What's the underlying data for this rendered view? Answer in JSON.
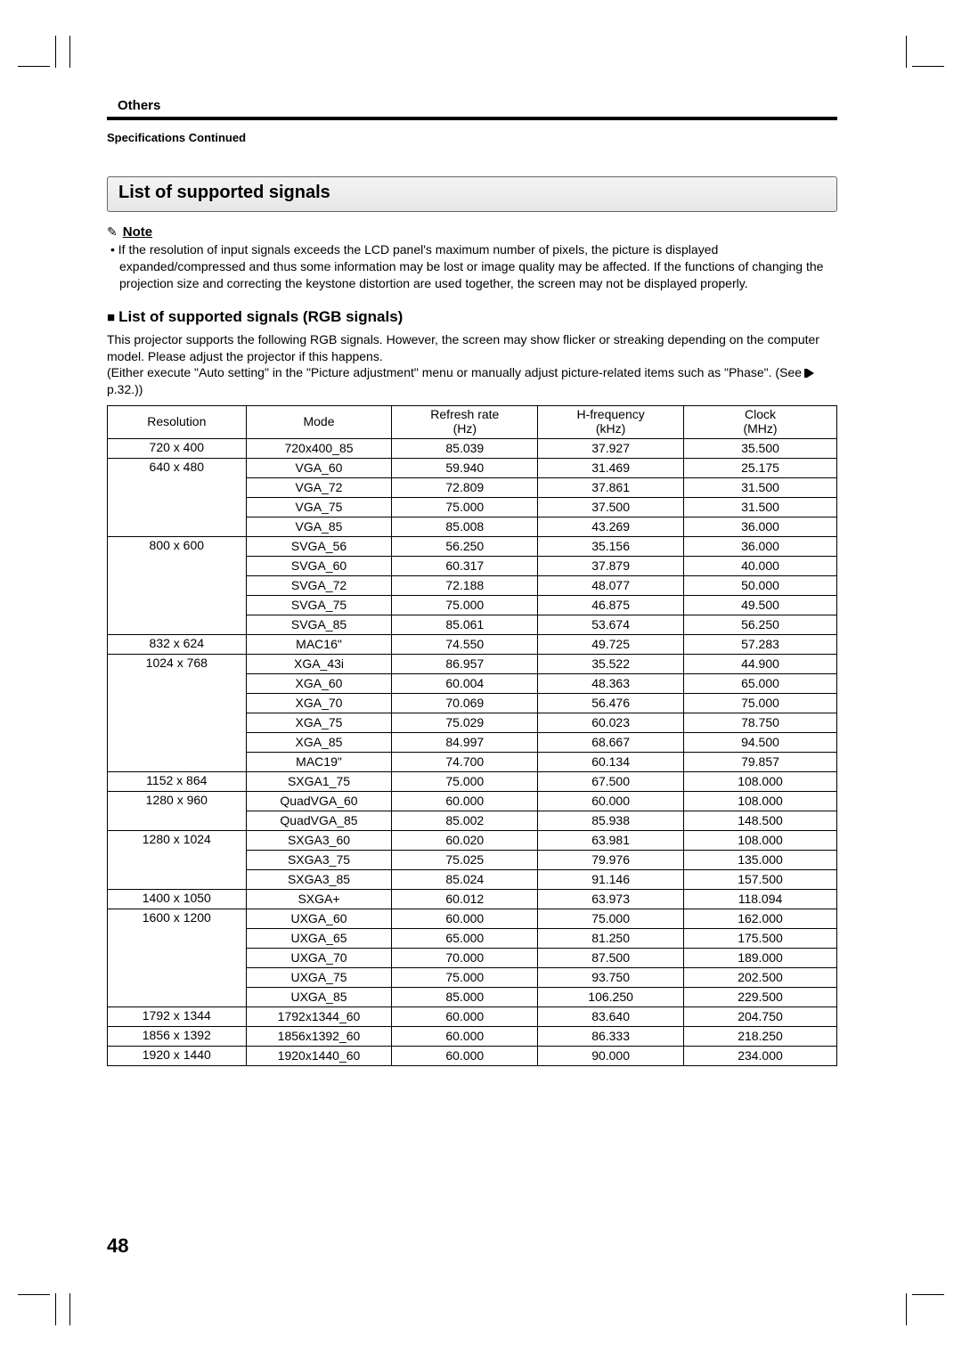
{
  "header": {
    "section_label": "Others",
    "subhead": "Specifications Continued"
  },
  "title": "List of supported signals",
  "note": {
    "label": "Note",
    "body": "If the resolution of input signals exceeds the LCD panel's maximum number of pixels, the picture is displayed expanded/compressed and thus some information may be lost or image quality may be affected. If the functions of changing the projection size and correcting the keystone distortion are used together, the screen may not be displayed properly."
  },
  "rgb_heading": "List of supported signals (RGB signals)",
  "intro_lines": [
    "This projector supports the following RGB signals.  However, the screen may show flicker or streaking depending on the computer model.  Please adjust the projector if this happens.",
    "(Either execute \"Auto setting\" in the \"Picture adjustment\" menu or manually adjust picture-related items such as \"Phase\".  (See"
  ],
  "see_ref": "p.32.))",
  "table": {
    "headers": {
      "c1": "Resolution",
      "c2": "Mode",
      "c3_l1": "Refresh rate",
      "c3_l2": "(Hz)",
      "c4_l1": "H-frequency",
      "c4_l2": "(kHz)",
      "c5_l1": "Clock",
      "c5_l2": "(MHz)"
    },
    "groups": [
      {
        "res": "720 x 400",
        "rows": [
          [
            "720x400_85",
            "85.039",
            "37.927",
            "35.500"
          ]
        ]
      },
      {
        "res": "640 x 480",
        "rows": [
          [
            "VGA_60",
            "59.940",
            "31.469",
            "25.175"
          ],
          [
            "VGA_72",
            "72.809",
            "37.861",
            "31.500"
          ],
          [
            "VGA_75",
            "75.000",
            "37.500",
            "31.500"
          ],
          [
            "VGA_85",
            "85.008",
            "43.269",
            "36.000"
          ]
        ]
      },
      {
        "res": "800 x 600",
        "rows": [
          [
            "SVGA_56",
            "56.250",
            "35.156",
            "36.000"
          ],
          [
            "SVGA_60",
            "60.317",
            "37.879",
            "40.000"
          ],
          [
            "SVGA_72",
            "72.188",
            "48.077",
            "50.000"
          ],
          [
            "SVGA_75",
            "75.000",
            "46.875",
            "49.500"
          ],
          [
            "SVGA_85",
            "85.061",
            "53.674",
            "56.250"
          ]
        ]
      },
      {
        "res": "832 x 624",
        "rows": [
          [
            "MAC16\"",
            "74.550",
            "49.725",
            "57.283"
          ]
        ]
      },
      {
        "res": "1024 x 768",
        "rows": [
          [
            "XGA_43i",
            "86.957",
            "35.522",
            "44.900"
          ],
          [
            "XGA_60",
            "60.004",
            "48.363",
            "65.000"
          ],
          [
            "XGA_70",
            "70.069",
            "56.476",
            "75.000"
          ],
          [
            "XGA_75",
            "75.029",
            "60.023",
            "78.750"
          ],
          [
            "XGA_85",
            "84.997",
            "68.667",
            "94.500"
          ],
          [
            "MAC19\"",
            "74.700",
            "60.134",
            "79.857"
          ]
        ]
      },
      {
        "res": "1152 x 864",
        "rows": [
          [
            "SXGA1_75",
            "75.000",
            "67.500",
            "108.000"
          ]
        ]
      },
      {
        "res": "1280 x 960",
        "rows": [
          [
            "QuadVGA_60",
            "60.000",
            "60.000",
            "108.000"
          ],
          [
            "QuadVGA_85",
            "85.002",
            "85.938",
            "148.500"
          ]
        ]
      },
      {
        "res": "1280 x 1024",
        "rows": [
          [
            "SXGA3_60",
            "60.020",
            "63.981",
            "108.000"
          ],
          [
            "SXGA3_75",
            "75.025",
            "79.976",
            "135.000"
          ],
          [
            "SXGA3_85",
            "85.024",
            "91.146",
            "157.500"
          ]
        ]
      },
      {
        "res": "1400 x 1050",
        "rows": [
          [
            "SXGA+",
            "60.012",
            "63.973",
            "118.094"
          ]
        ]
      },
      {
        "res": "1600 x 1200",
        "rows": [
          [
            "UXGA_60",
            "60.000",
            "75.000",
            "162.000"
          ],
          [
            "UXGA_65",
            "65.000",
            "81.250",
            "175.500"
          ],
          [
            "UXGA_70",
            "70.000",
            "87.500",
            "189.000"
          ],
          [
            "UXGA_75",
            "75.000",
            "93.750",
            "202.500"
          ],
          [
            "UXGA_85",
            "85.000",
            "106.250",
            "229.500"
          ]
        ]
      },
      {
        "res": "1792 x 1344",
        "rows": [
          [
            "1792x1344_60",
            "60.000",
            "83.640",
            "204.750"
          ]
        ]
      },
      {
        "res": "1856 x 1392",
        "rows": [
          [
            "1856x1392_60",
            "60.000",
            "86.333",
            "218.250"
          ]
        ]
      },
      {
        "res": "1920 x 1440",
        "rows": [
          [
            "1920x1440_60",
            "60.000",
            "90.000",
            "234.000"
          ]
        ]
      }
    ]
  },
  "page_number": "48",
  "colors": {
    "text": "#000000",
    "background": "#ffffff",
    "box_border": "#666666",
    "box_fill_top": "#f4f4f4",
    "box_fill_bottom": "#e6e6e6"
  },
  "fonts": {
    "body_pt": 10.5,
    "title_pt": 15,
    "pagenum_pt": 16
  }
}
